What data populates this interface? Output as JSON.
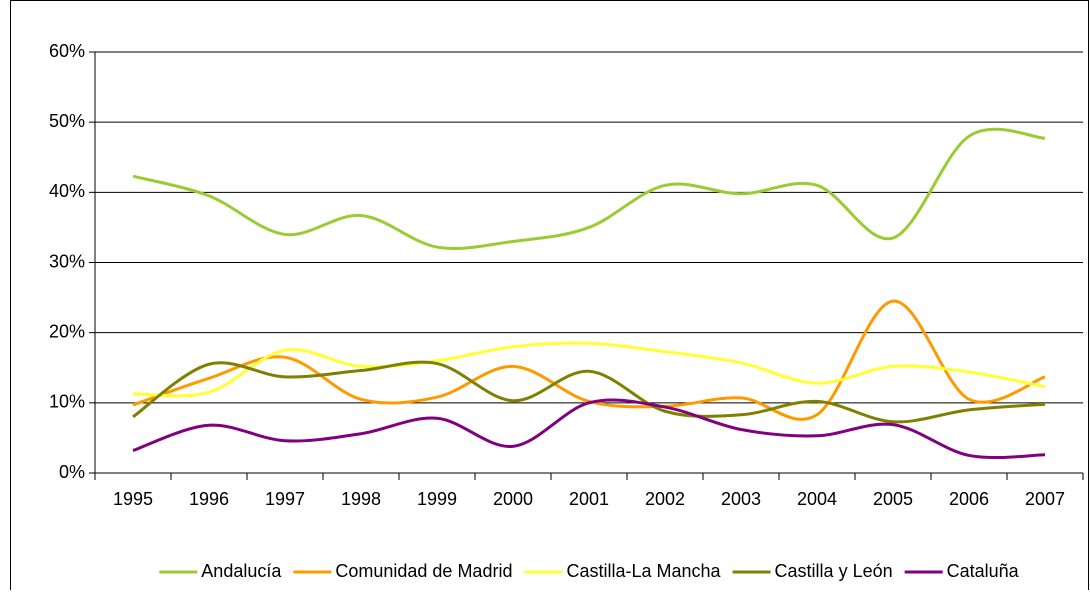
{
  "chart_data": {
    "type": "line",
    "categories": [
      "1995",
      "1996",
      "1997",
      "1998",
      "1999",
      "2000",
      "2001",
      "2002",
      "2003",
      "2004",
      "2005",
      "2006",
      "2007"
    ],
    "series": [
      {
        "name": "Andalucía",
        "color": "#99cc33",
        "values": [
          42.3,
          39.5,
          34,
          36.7,
          32.2,
          33,
          35,
          41,
          39.8,
          41,
          33.5,
          48,
          47.7
        ]
      },
      {
        "name": "Comunidad de Madrid",
        "color": "#ff9900",
        "values": [
          9.7,
          13.5,
          16.5,
          10.5,
          10.8,
          15.2,
          10.2,
          9.5,
          10.7,
          8.3,
          24.5,
          10.5,
          13.7
        ]
      },
      {
        "name": "Castilla-La Mancha",
        "color": "#ffff33",
        "values": [
          11.3,
          11.5,
          17.5,
          15.2,
          16,
          18,
          18.5,
          17.3,
          15.7,
          12.8,
          15.2,
          14.4,
          12.3
        ]
      },
      {
        "name": "Castilla y León",
        "color": "#808000",
        "values": [
          8,
          15.5,
          13.7,
          14.6,
          15.6,
          10.3,
          14.5,
          8.8,
          8.3,
          10.2,
          7.3,
          9,
          9.8
        ]
      },
      {
        "name": "Cataluña",
        "color": "#800080",
        "values": [
          3.2,
          6.8,
          4.6,
          5.6,
          7.8,
          3.8,
          10,
          9.4,
          6.2,
          5.3,
          6.9,
          2.5,
          2.6
        ]
      }
    ],
    "ylim": [
      0,
      60
    ],
    "yticks": [
      {
        "value": 0,
        "label": "0%"
      },
      {
        "value": 10,
        "label": "10%"
      },
      {
        "value": 20,
        "label": "20%"
      },
      {
        "value": 30,
        "label": "30%"
      },
      {
        "value": 40,
        "label": "40%"
      },
      {
        "value": 50,
        "label": "50%"
      },
      {
        "value": 60,
        "label": "60%"
      }
    ],
    "grid": true,
    "legend": "bottom"
  }
}
